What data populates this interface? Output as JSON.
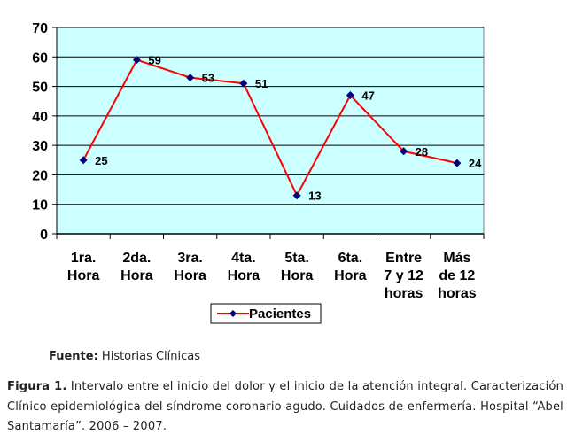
{
  "chart_data": {
    "type": "line",
    "categories": [
      [
        "1ra.",
        "Hora"
      ],
      [
        "2da.",
        "Hora"
      ],
      [
        "3ra.",
        "Hora"
      ],
      [
        "4ta.",
        "Hora"
      ],
      [
        "5ta.",
        "Hora"
      ],
      [
        "6ta.",
        "Hora"
      ],
      [
        "Entre",
        "7 y 12",
        "horas"
      ],
      [
        "Más",
        "de 12",
        "horas"
      ]
    ],
    "series": [
      {
        "name": "Pacientes",
        "values": [
          25,
          59,
          53,
          51,
          13,
          47,
          28,
          24
        ],
        "color": "#ff0000",
        "marker_color": "#000080"
      }
    ],
    "ylim": [
      0,
      70
    ],
    "yticks": [
      0,
      10,
      20,
      30,
      40,
      50,
      60,
      70
    ],
    "plot_background": "#ccffff",
    "grid": true,
    "data_labels": true,
    "legend_position": "bottom"
  },
  "source": {
    "label": "Fuente:",
    "text": " Historias Clínicas"
  },
  "caption": {
    "label": "Figura 1.",
    "text": " Intervalo entre el inicio del dolor y el inicio de la atención integral. Caracterización Clínico epidemiológica del síndrome coronario agudo. Cuidados de enfermería. Hospital “Abel Santamaría”. 2006 – 2007."
  }
}
